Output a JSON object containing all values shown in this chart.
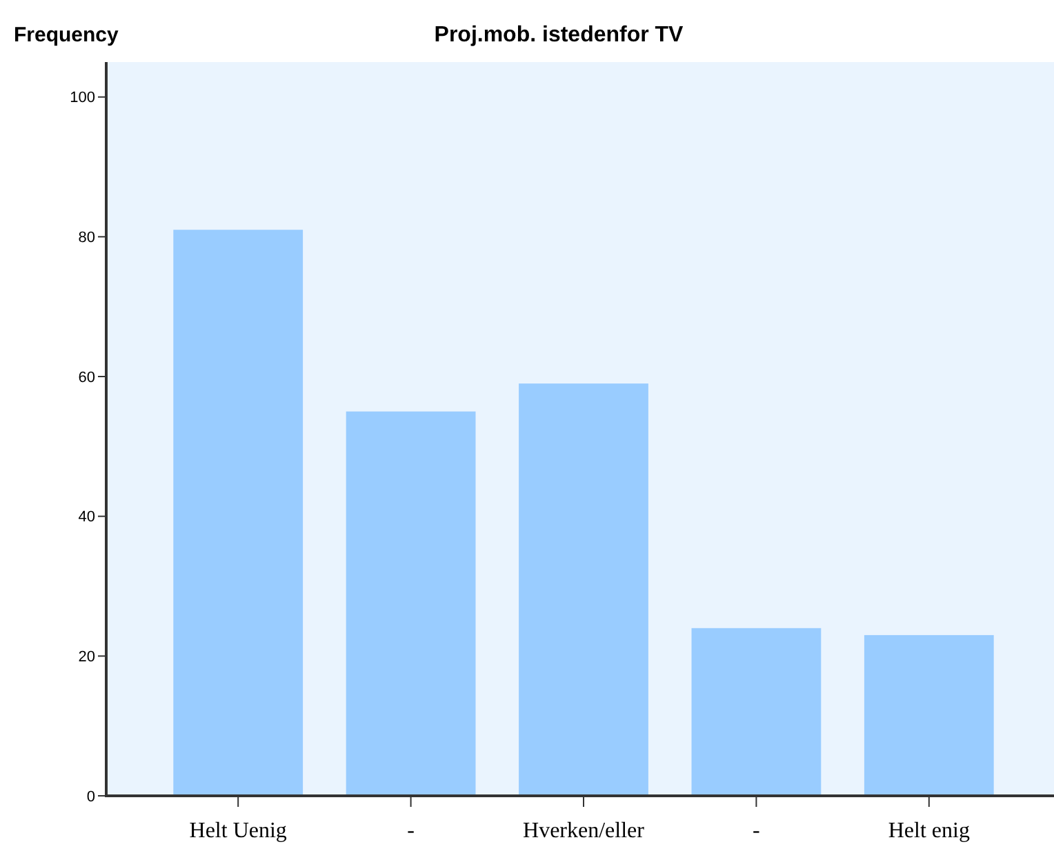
{
  "chart_data": {
    "type": "bar",
    "title": "Proj.mob. istedenfor TV",
    "ylabel": "Frequency",
    "categories": [
      "Helt Uenig",
      "-",
      "Hverken/eller",
      "-",
      "Helt enig"
    ],
    "values": [
      81,
      55,
      59,
      24,
      23
    ],
    "color": "#99ccff",
    "ylim": [
      0,
      105
    ],
    "yticks": [
      0,
      20,
      40,
      60,
      80,
      100
    ],
    "grid": false
  }
}
